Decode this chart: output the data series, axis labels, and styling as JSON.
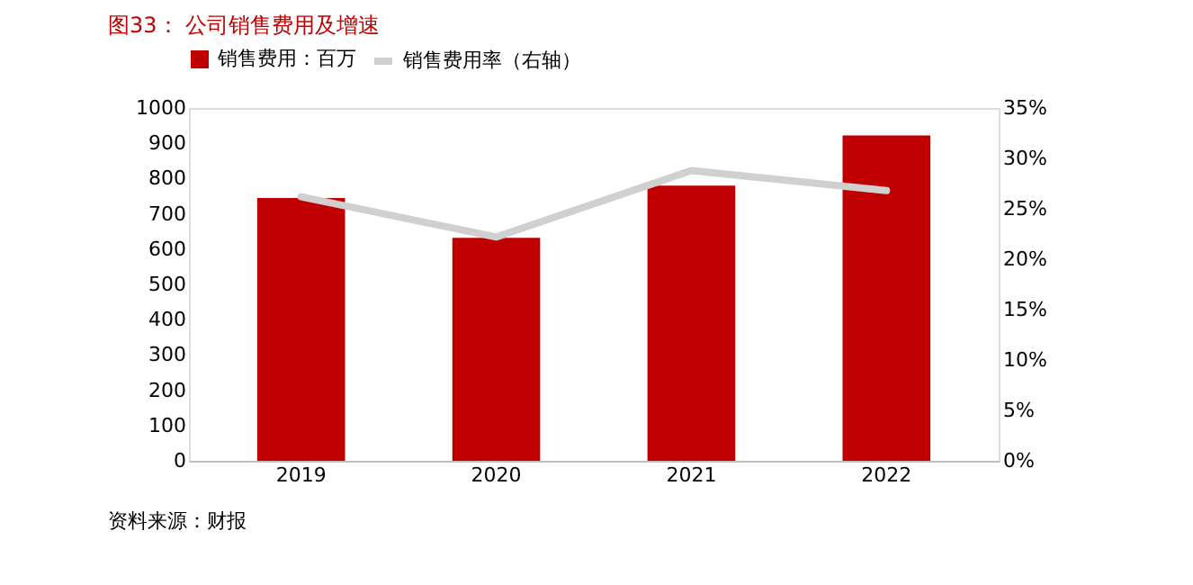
{
  "chart_data": {
    "type": "bar",
    "title": "图33：  公司销售费用及增速",
    "categories": [
      "2019",
      "2020",
      "2021",
      "2022"
    ],
    "series": [
      {
        "name": "销售费用：百万",
        "color": "#c00000",
        "values": [
          745,
          632,
          780,
          922
        ]
      },
      {
        "name": "销售费用率（右轴）",
        "type": "line",
        "axis": "y2",
        "color": "#d0d0d0",
        "values": [
          26.2,
          22.2,
          28.8,
          26.8
        ]
      }
    ],
    "ylim": [
      0,
      1000
    ],
    "yticks": [
      0,
      100,
      200,
      300,
      400,
      500,
      600,
      700,
      800,
      900,
      1000
    ],
    "y2lim": [
      0,
      35
    ],
    "y2ticks": [
      {
        "value": 0,
        "label": "0%"
      },
      {
        "value": 5,
        "label": "5%"
      },
      {
        "value": 10,
        "label": "10%"
      },
      {
        "value": 15,
        "label": "15%"
      },
      {
        "value": 20,
        "label": "20%"
      },
      {
        "value": 25,
        "label": "25%"
      },
      {
        "value": 30,
        "label": "30%"
      },
      {
        "value": 35,
        "label": "35%"
      }
    ],
    "grid": false,
    "legend": "top",
    "marker": "none",
    "annotations": [
      "资料来源：财报"
    ]
  }
}
